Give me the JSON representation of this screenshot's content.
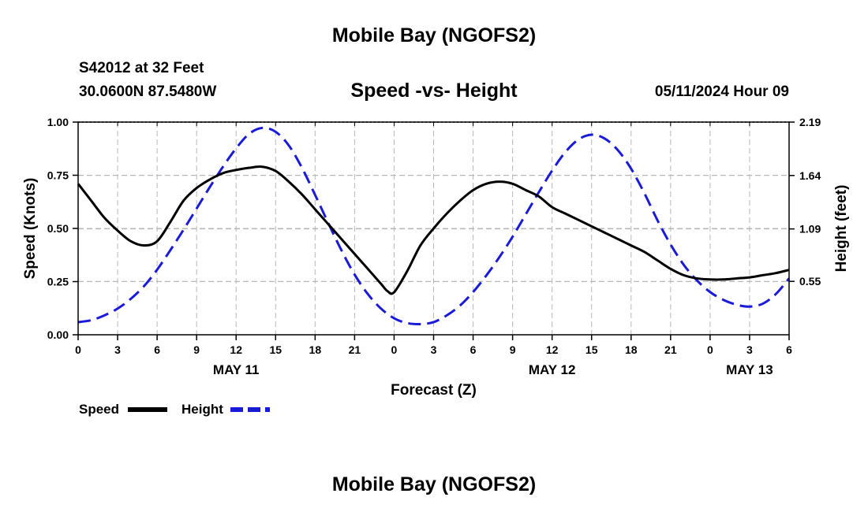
{
  "header": {
    "title": "Mobile Bay (NGOFS2)",
    "station": "S42012 at 32 Feet",
    "coordinates": "30.0600N  87.5480W",
    "subtitle": "Speed -vs- Height",
    "datetime": "05/11/2024 Hour 09",
    "footer_title": "Mobile Bay (NGOFS2)"
  },
  "chart_data": {
    "type": "line",
    "title": "Speed -vs- Height",
    "xlabel": "Forecast (Z)",
    "ylabel": "Speed (Knots)",
    "y2label": "Height (feet)",
    "x_unit": "hours from 05/11/2024 00Z",
    "xlim": [
      0,
      54
    ],
    "ylim": [
      0,
      1.0
    ],
    "y2lim": [
      0.0,
      2.19
    ],
    "x_tick_values": [
      0,
      3,
      6,
      9,
      12,
      15,
      18,
      21,
      24,
      27,
      30,
      33,
      36,
      39,
      42,
      45,
      48,
      51,
      54
    ],
    "x_tick_labels": [
      "0",
      "3",
      "6",
      "9",
      "12",
      "15",
      "18",
      "21",
      "0",
      "3",
      "6",
      "9",
      "12",
      "15",
      "18",
      "21",
      "0",
      "3",
      "6"
    ],
    "y_ticks": [
      0.0,
      0.25,
      0.5,
      0.75,
      1.0
    ],
    "y_tick_labels": [
      "0.00",
      "0.25",
      "0.50",
      "0.75",
      "1.00"
    ],
    "y2_ticks": [
      0.55,
      1.09,
      1.64,
      2.19
    ],
    "y2_tick_labels": [
      "0.55",
      "1.09",
      "1.64",
      "2.19"
    ],
    "day_labels": [
      {
        "x": 12,
        "label": "MAY 11"
      },
      {
        "x": 36,
        "label": "MAY 12"
      },
      {
        "x": 51,
        "label": "MAY 13"
      }
    ],
    "grid": true,
    "legend_position": "bottom-left",
    "series": [
      {
        "name": "Speed",
        "axis": "left",
        "color": "#000000",
        "style": "solid",
        "x": [
          0,
          1,
          2,
          3,
          4,
          5,
          6,
          7,
          8,
          9,
          10,
          11,
          12,
          13,
          14,
          15,
          16,
          17,
          18,
          19,
          20,
          21,
          22,
          23,
          23.5,
          24,
          25,
          26,
          27,
          28,
          29,
          30,
          31,
          32,
          33,
          34,
          35,
          36,
          37,
          38,
          39,
          40,
          41,
          42,
          43,
          44,
          45,
          46,
          47,
          48,
          49,
          50,
          51,
          52,
          53,
          54
        ],
        "values": [
          0.71,
          0.63,
          0.55,
          0.49,
          0.44,
          0.42,
          0.44,
          0.53,
          0.63,
          0.69,
          0.73,
          0.76,
          0.775,
          0.785,
          0.79,
          0.77,
          0.72,
          0.66,
          0.59,
          0.52,
          0.45,
          0.38,
          0.31,
          0.24,
          0.205,
          0.2,
          0.3,
          0.42,
          0.5,
          0.57,
          0.63,
          0.68,
          0.71,
          0.72,
          0.71,
          0.68,
          0.65,
          0.6,
          0.57,
          0.54,
          0.51,
          0.48,
          0.45,
          0.42,
          0.39,
          0.35,
          0.31,
          0.28,
          0.265,
          0.26,
          0.26,
          0.265,
          0.27,
          0.28,
          0.29,
          0.305
        ]
      },
      {
        "name": "Height",
        "axis": "right",
        "color": "#1a1ad9",
        "style": "dashed",
        "x": [
          0,
          1,
          2,
          3,
          4,
          5,
          6,
          7,
          8,
          9,
          10,
          11,
          12,
          13,
          14,
          15,
          16,
          17,
          18,
          19,
          20,
          21,
          22,
          23,
          24,
          25,
          26,
          27,
          28,
          29,
          30,
          31,
          32,
          33,
          34,
          35,
          36,
          37,
          38,
          39,
          40,
          41,
          42,
          43,
          44,
          45,
          46,
          47,
          48,
          49,
          50,
          51,
          52,
          53,
          54
        ],
        "values": [
          0.13,
          0.15,
          0.2,
          0.27,
          0.37,
          0.5,
          0.67,
          0.87,
          1.08,
          1.3,
          1.52,
          1.73,
          1.92,
          2.07,
          2.13,
          2.09,
          1.95,
          1.72,
          1.44,
          1.15,
          0.87,
          0.62,
          0.42,
          0.27,
          0.17,
          0.12,
          0.11,
          0.13,
          0.2,
          0.3,
          0.44,
          0.61,
          0.8,
          1.01,
          1.24,
          1.47,
          1.69,
          1.88,
          2.01,
          2.06,
          2.02,
          1.9,
          1.71,
          1.46,
          1.18,
          0.93,
          0.72,
          0.56,
          0.44,
          0.36,
          0.31,
          0.29,
          0.32,
          0.42,
          0.58
        ]
      }
    ]
  }
}
